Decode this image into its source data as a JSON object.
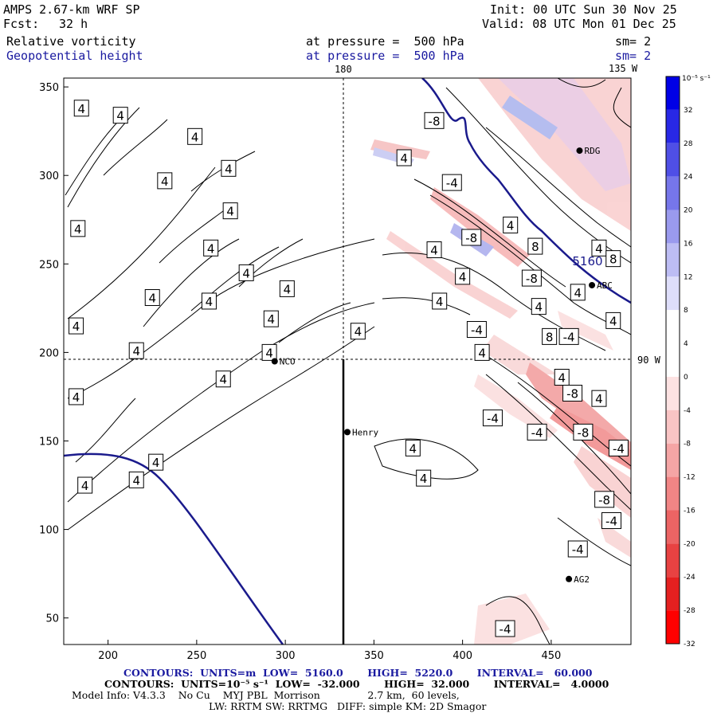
{
  "header": {
    "model": "AMPS 2.67-km WRF SP",
    "fcst_label": "Fcst:",
    "fcst_value": "32 h",
    "init": "Init: 00 UTC Sun 30 Nov 25",
    "valid": "Valid: 08 UTC Mon 01 Dec 25",
    "field1": "Relative vorticity",
    "field2": "Geopotential height",
    "pressure1": "at pressure =  500 hPa",
    "pressure2": "at pressure =  500 hPa",
    "sm1": "sm= 2",
    "sm2": "sm= 2"
  },
  "map_labels": {
    "lon_180": "180",
    "lon_135w": "135 W",
    "lat_90w": "90 W"
  },
  "chart_data": {
    "type": "contour",
    "title": "Relative vorticity / Geopotential height at 500 hPa",
    "xlim": [
      175,
      495
    ],
    "ylim": [
      35,
      355
    ],
    "x_ticks": [
      200,
      250,
      300,
      350,
      400,
      450
    ],
    "y_ticks": [
      50,
      100,
      150,
      200,
      250,
      300,
      350
    ],
    "height_contour": {
      "label": "5160",
      "x": 470,
      "y": 252
    },
    "stations": [
      {
        "name": "NCO",
        "x": 294,
        "y": 195
      },
      {
        "name": "Henry",
        "x": 335,
        "y": 155
      },
      {
        "name": "AG2",
        "x": 460,
        "y": 72
      },
      {
        "name": "RDG",
        "x": 466,
        "y": 314
      },
      {
        "name": "ABC",
        "x": 473,
        "y": 238
      }
    ],
    "contour_labels": [
      {
        "text": "4",
        "x": 185,
        "y": 338
      },
      {
        "text": "4",
        "x": 183,
        "y": 270
      },
      {
        "text": "4",
        "x": 182,
        "y": 215
      },
      {
        "text": "4",
        "x": 182,
        "y": 175
      },
      {
        "text": "4",
        "x": 207,
        "y": 334
      },
      {
        "text": "4",
        "x": 232,
        "y": 297
      },
      {
        "text": "4",
        "x": 249,
        "y": 322
      },
      {
        "text": "4",
        "x": 268,
        "y": 304
      },
      {
        "text": "4",
        "x": 269,
        "y": 280
      },
      {
        "text": "4",
        "x": 258,
        "y": 259
      },
      {
        "text": "4",
        "x": 278,
        "y": 245
      },
      {
        "text": "4",
        "x": 225,
        "y": 231
      },
      {
        "text": "4",
        "x": 216,
        "y": 201
      },
      {
        "text": "4",
        "x": 257,
        "y": 229
      },
      {
        "text": "4",
        "x": 301,
        "y": 236
      },
      {
        "text": "4",
        "x": 292,
        "y": 219
      },
      {
        "text": "4",
        "x": 341,
        "y": 212
      },
      {
        "text": "4",
        "x": 265,
        "y": 185
      },
      {
        "text": "4",
        "x": 291,
        "y": 200
      },
      {
        "text": "4",
        "x": 227,
        "y": 138
      },
      {
        "text": "4",
        "x": 216,
        "y": 128
      },
      {
        "text": "4",
        "x": 187,
        "y": 125
      },
      {
        "text": "-8",
        "x": 384,
        "y": 331
      },
      {
        "text": "4",
        "x": 367,
        "y": 310
      },
      {
        "text": "-4",
        "x": 394,
        "y": 296
      },
      {
        "text": "4",
        "x": 427,
        "y": 272
      },
      {
        "text": "-8",
        "x": 405,
        "y": 265
      },
      {
        "text": "4",
        "x": 384,
        "y": 258
      },
      {
        "text": "4",
        "x": 400,
        "y": 243
      },
      {
        "text": "-8",
        "x": 439,
        "y": 242
      },
      {
        "text": "8",
        "x": 441,
        "y": 260
      },
      {
        "text": "4",
        "x": 387,
        "y": 229
      },
      {
        "text": "4",
        "x": 443,
        "y": 226
      },
      {
        "text": "-4",
        "x": 408,
        "y": 213
      },
      {
        "text": "8",
        "x": 449,
        "y": 209
      },
      {
        "text": "-4",
        "x": 460,
        "y": 209
      },
      {
        "text": "4",
        "x": 411,
        "y": 200
      },
      {
        "text": "4",
        "x": 477,
        "y": 259
      },
      {
        "text": "8",
        "x": 485,
        "y": 253
      },
      {
        "text": "4",
        "x": 465,
        "y": 234
      },
      {
        "text": "4",
        "x": 485,
        "y": 218
      },
      {
        "text": "4",
        "x": 456,
        "y": 186
      },
      {
        "text": "-8",
        "x": 462,
        "y": 177
      },
      {
        "text": "4",
        "x": 477,
        "y": 174
      },
      {
        "text": "-4",
        "x": 417,
        "y": 163
      },
      {
        "text": "-4",
        "x": 442,
        "y": 155
      },
      {
        "text": "-8",
        "x": 468,
        "y": 155
      },
      {
        "text": "-4",
        "x": 488,
        "y": 146
      },
      {
        "text": "4",
        "x": 372,
        "y": 146
      },
      {
        "text": "4",
        "x": 378,
        "y": 129
      },
      {
        "text": "-8",
        "x": 480,
        "y": 117
      },
      {
        "text": "-4",
        "x": 484,
        "y": 105
      },
      {
        "text": "-4",
        "x": 465,
        "y": 89
      },
      {
        "text": "-4",
        "x": 424,
        "y": 44
      }
    ],
    "colorbar": {
      "unit": "10⁻⁵ s⁻¹",
      "ticks": [
        "32",
        "28",
        "24",
        "20",
        "16",
        "12",
        "8",
        "4",
        "0",
        "-4",
        "-8",
        "-12",
        "-16",
        "-20",
        "-24",
        "-28",
        "-32"
      ],
      "colors": [
        "#0000e6",
        "#2828e6",
        "#4f4fe6",
        "#7676ea",
        "#9a9aee",
        "#bdbdf4",
        "#dedefa",
        "#ffffff",
        "#ffffff",
        "#fde2e2",
        "#f9c4c4",
        "#f5a5a5",
        "#f18585",
        "#ec6464",
        "#e84242",
        "#e42020",
        "#ff0000"
      ]
    },
    "series": [
      {
        "name": "geopotential height",
        "units": "m",
        "low": 5160.0,
        "high": 5220.0,
        "interval": 60.0
      },
      {
        "name": "relative vorticity",
        "units": "10^-5 s^-1",
        "low": -32.0,
        "high": 32.0,
        "interval": 4.0
      }
    ]
  },
  "footer": {
    "contours1": "CONTOURS:  UNITS=m  LOW=  5160.0       HIGH=  5220.0       INTERVAL=   60.000",
    "contours2": "CONTOURS:  UNITS=10⁻⁵ s⁻¹  LOW=  -32.000       HIGH=  32.000       INTERVAL=   4.0000",
    "model_info": "Model Info: V4.3.3    No Cu    MYJ PBL  Morrison               2.7 km,  60 levels,",
    "model_info2": "LW: RRTM SW: RRTMG   DIFF: simple KM: 2D Smagor"
  },
  "colors": {
    "height_contour": "#1a1a8c",
    "frame": "#000000"
  }
}
